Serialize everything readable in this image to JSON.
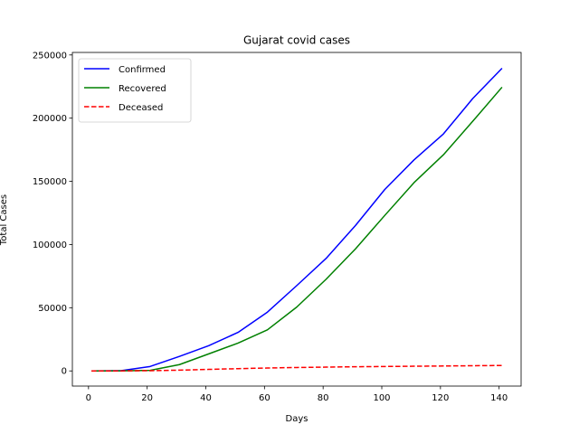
{
  "chart_data": {
    "type": "line",
    "title": "Gujarat covid cases",
    "xlabel": "Days",
    "ylabel": "Total Cases",
    "xlim": [
      -5.5,
      147.5
    ],
    "ylim": [
      -12000,
      252000
    ],
    "xticks": [
      0,
      20,
      40,
      60,
      80,
      100,
      120,
      140
    ],
    "yticks": [
      0,
      50000,
      100000,
      150000,
      200000,
      250000
    ],
    "grid": false,
    "legend_position": "top-left",
    "x": [
      1,
      11,
      21,
      31,
      41,
      51,
      61,
      71,
      81,
      91,
      101,
      111,
      121,
      131,
      141
    ],
    "series": [
      {
        "name": "Confirmed",
        "color": "#0000ff",
        "style": "solid",
        "values": [
          0,
          200,
          3500,
          11500,
          20000,
          30500,
          46500,
          67500,
          89000,
          115000,
          143500,
          167000,
          187500,
          215500,
          239500
        ]
      },
      {
        "name": "Recovered",
        "color": "#008000",
        "style": "solid",
        "values": [
          0,
          50,
          400,
          5000,
          13500,
          22000,
          32500,
          50500,
          72500,
          96500,
          123000,
          149000,
          171000,
          197500,
          224500
        ]
      },
      {
        "name": "Deceased",
        "color": "#ff0000",
        "style": "dashed",
        "values": [
          0,
          10,
          200,
          600,
          1200,
          1800,
          2300,
          2700,
          3000,
          3300,
          3500,
          3700,
          3900,
          4100,
          4300
        ]
      }
    ]
  }
}
